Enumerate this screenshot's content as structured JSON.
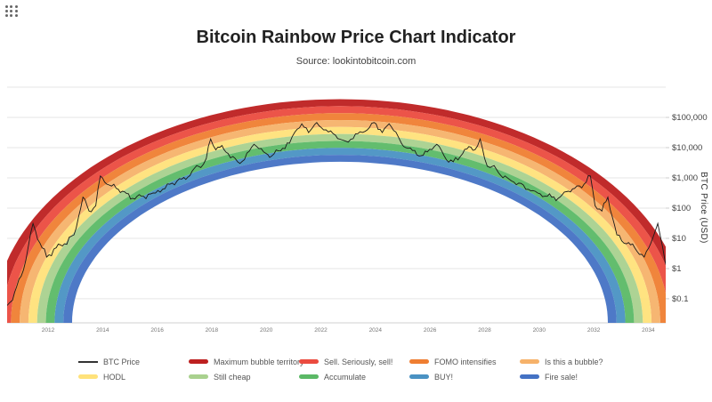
{
  "icons": {
    "top_left": "grid-menu-icon"
  },
  "chart_data": {
    "type": "line",
    "title": "Bitcoin Rainbow Price Chart Indicator",
    "subtitle": "Source: lookintobitcoin.com",
    "xlim": [
      2010.5,
      2034.64
    ],
    "ylim": [
      0.016,
      1000000
    ],
    "grid_log_levels": [
      6,
      5,
      4,
      3,
      2,
      1,
      0,
      -1
    ],
    "x_axis": {
      "tick_values": [
        2012,
        2014,
        2016,
        2018,
        2020,
        2022,
        2024,
        2026,
        2028,
        2030,
        2032,
        2034
      ],
      "tick_labels": [
        "2012",
        "2014",
        "2016",
        "2018",
        "2020",
        "2022",
        "2024",
        "2026",
        "2028",
        "2030",
        "2032",
        "2034"
      ]
    },
    "y_axis": {
      "label": "BTC Price (USD)",
      "scale": "log",
      "tick_values": [
        100000,
        10000,
        1000,
        100,
        10,
        1,
        0.1
      ],
      "tick_labels": [
        "$100,000",
        "$10,000",
        "$1,000",
        "$100",
        "$10",
        "$1",
        "$0.1"
      ]
    },
    "legend": [
      {
        "label": "BTC Price",
        "color": "#333333",
        "swatch": "line"
      },
      {
        "label": "Maximum bubble territory",
        "color": "#bd2020",
        "swatch": "band"
      },
      {
        "label": "Sell. Seriously, sell!",
        "color": "#eb4b3f",
        "swatch": "band"
      },
      {
        "label": "FOMO intensifies",
        "color": "#ef7e32",
        "swatch": "band"
      },
      {
        "label": "Is this a bubble?",
        "color": "#f6b26a",
        "swatch": "band"
      },
      {
        "label": "HODL",
        "color": "#ffe27a",
        "swatch": "band"
      },
      {
        "label": "Still cheap",
        "color": "#a9d18e",
        "swatch": "band"
      },
      {
        "label": "Accumulate",
        "color": "#5bb966",
        "swatch": "band"
      },
      {
        "label": "BUY!",
        "color": "#4a92c3",
        "swatch": "band"
      },
      {
        "label": "Fire sale!",
        "color": "#4472c4",
        "swatch": "band"
      }
    ],
    "rainbow": {
      "center_year": 2022.7,
      "half_width_years": 12.7,
      "band_step_years": 0.32,
      "peak_usd": 400000,
      "band_step_decades": 0.23,
      "base_usd": 0.016,
      "bands": [
        {
          "label": "Maximum bubble territory",
          "color": "#bd2020"
        },
        {
          "label": "Sell. Seriously, sell!",
          "color": "#eb4b3f"
        },
        {
          "label": "FOMO intensifies",
          "color": "#ef7e32"
        },
        {
          "label": "Is this a bubble?",
          "color": "#f6b26a"
        },
        {
          "label": "HODL",
          "color": "#ffe27a"
        },
        {
          "label": "Still cheap",
          "color": "#a9d18e"
        },
        {
          "label": "Accumulate",
          "color": "#5bb966"
        },
        {
          "label": "BUY!",
          "color": "#4a92c3"
        },
        {
          "label": "Fire sale!",
          "color": "#4472c4"
        }
      ]
    },
    "series": [
      {
        "name": "BTC Price",
        "color": "#1a1a1a",
        "points": [
          [
            2010.5,
            0.06
          ],
          [
            2010.7,
            0.09
          ],
          [
            2010.85,
            0.25
          ],
          [
            2011.1,
            0.9
          ],
          [
            2011.45,
            31
          ],
          [
            2011.7,
            7
          ],
          [
            2011.95,
            2.4
          ],
          [
            2012.3,
            4.9
          ],
          [
            2012.6,
            6.6
          ],
          [
            2012.95,
            13
          ],
          [
            2013.28,
            230
          ],
          [
            2013.5,
            80
          ],
          [
            2013.75,
            120
          ],
          [
            2013.92,
            1150
          ],
          [
            2014.15,
            620
          ],
          [
            2014.5,
            450
          ],
          [
            2014.8,
            350
          ],
          [
            2015.1,
            210
          ],
          [
            2015.5,
            245
          ],
          [
            2015.85,
            315
          ],
          [
            2016.2,
            420
          ],
          [
            2016.55,
            670
          ],
          [
            2016.9,
            910
          ],
          [
            2017.2,
            1190
          ],
          [
            2017.45,
            2550
          ],
          [
            2017.6,
            2190
          ],
          [
            2017.8,
            4400
          ],
          [
            2017.96,
            19300
          ],
          [
            2018.15,
            8500
          ],
          [
            2018.3,
            10300
          ],
          [
            2018.6,
            6400
          ],
          [
            2018.95,
            3400
          ],
          [
            2019.2,
            4000
          ],
          [
            2019.55,
            12900
          ],
          [
            2019.9,
            7200
          ],
          [
            2020.2,
            5300
          ],
          [
            2020.6,
            9500
          ],
          [
            2020.85,
            14000
          ],
          [
            2021.05,
            33000
          ],
          [
            2021.3,
            61500
          ],
          [
            2021.55,
            31500
          ],
          [
            2021.85,
            67500
          ],
          [
            2022.1,
            38500
          ],
          [
            2022.45,
            29000
          ],
          [
            2022.7,
            19000
          ],
          [
            2022.9,
            16500
          ],
          [
            2023.1,
            19000
          ],
          [
            2023.35,
            29000
          ],
          [
            2023.7,
            38500
          ],
          [
            2023.95,
            67500
          ],
          [
            2024.25,
            31500
          ],
          [
            2024.5,
            61500
          ],
          [
            2024.75,
            33000
          ],
          [
            2024.95,
            14000
          ],
          [
            2025.2,
            9500
          ],
          [
            2025.6,
            5300
          ],
          [
            2025.9,
            7200
          ],
          [
            2026.25,
            12900
          ],
          [
            2026.6,
            4000
          ],
          [
            2026.85,
            3400
          ],
          [
            2027.2,
            6400
          ],
          [
            2027.5,
            10300
          ],
          [
            2027.65,
            8500
          ],
          [
            2027.84,
            19300
          ],
          [
            2028.0,
            4400
          ],
          [
            2028.2,
            2190
          ],
          [
            2028.35,
            2550
          ],
          [
            2028.6,
            1190
          ],
          [
            2028.9,
            910
          ],
          [
            2029.25,
            670
          ],
          [
            2029.6,
            420
          ],
          [
            2029.95,
            315
          ],
          [
            2030.3,
            245
          ],
          [
            2030.7,
            210
          ],
          [
            2031.0,
            350
          ],
          [
            2031.3,
            450
          ],
          [
            2031.65,
            620
          ],
          [
            2031.88,
            1150
          ],
          [
            2032.05,
            120
          ],
          [
            2032.3,
            80
          ],
          [
            2032.52,
            230
          ],
          [
            2032.85,
            13
          ],
          [
            2033.2,
            6.6
          ],
          [
            2033.5,
            4.9
          ],
          [
            2033.85,
            2.4
          ],
          [
            2034.1,
            7
          ],
          [
            2034.35,
            31
          ],
          [
            2034.7,
            0.9
          ],
          [
            2034.95,
            0.25
          ],
          [
            2035.1,
            0.09
          ],
          [
            2035.3,
            0.06
          ]
        ]
      }
    ]
  }
}
